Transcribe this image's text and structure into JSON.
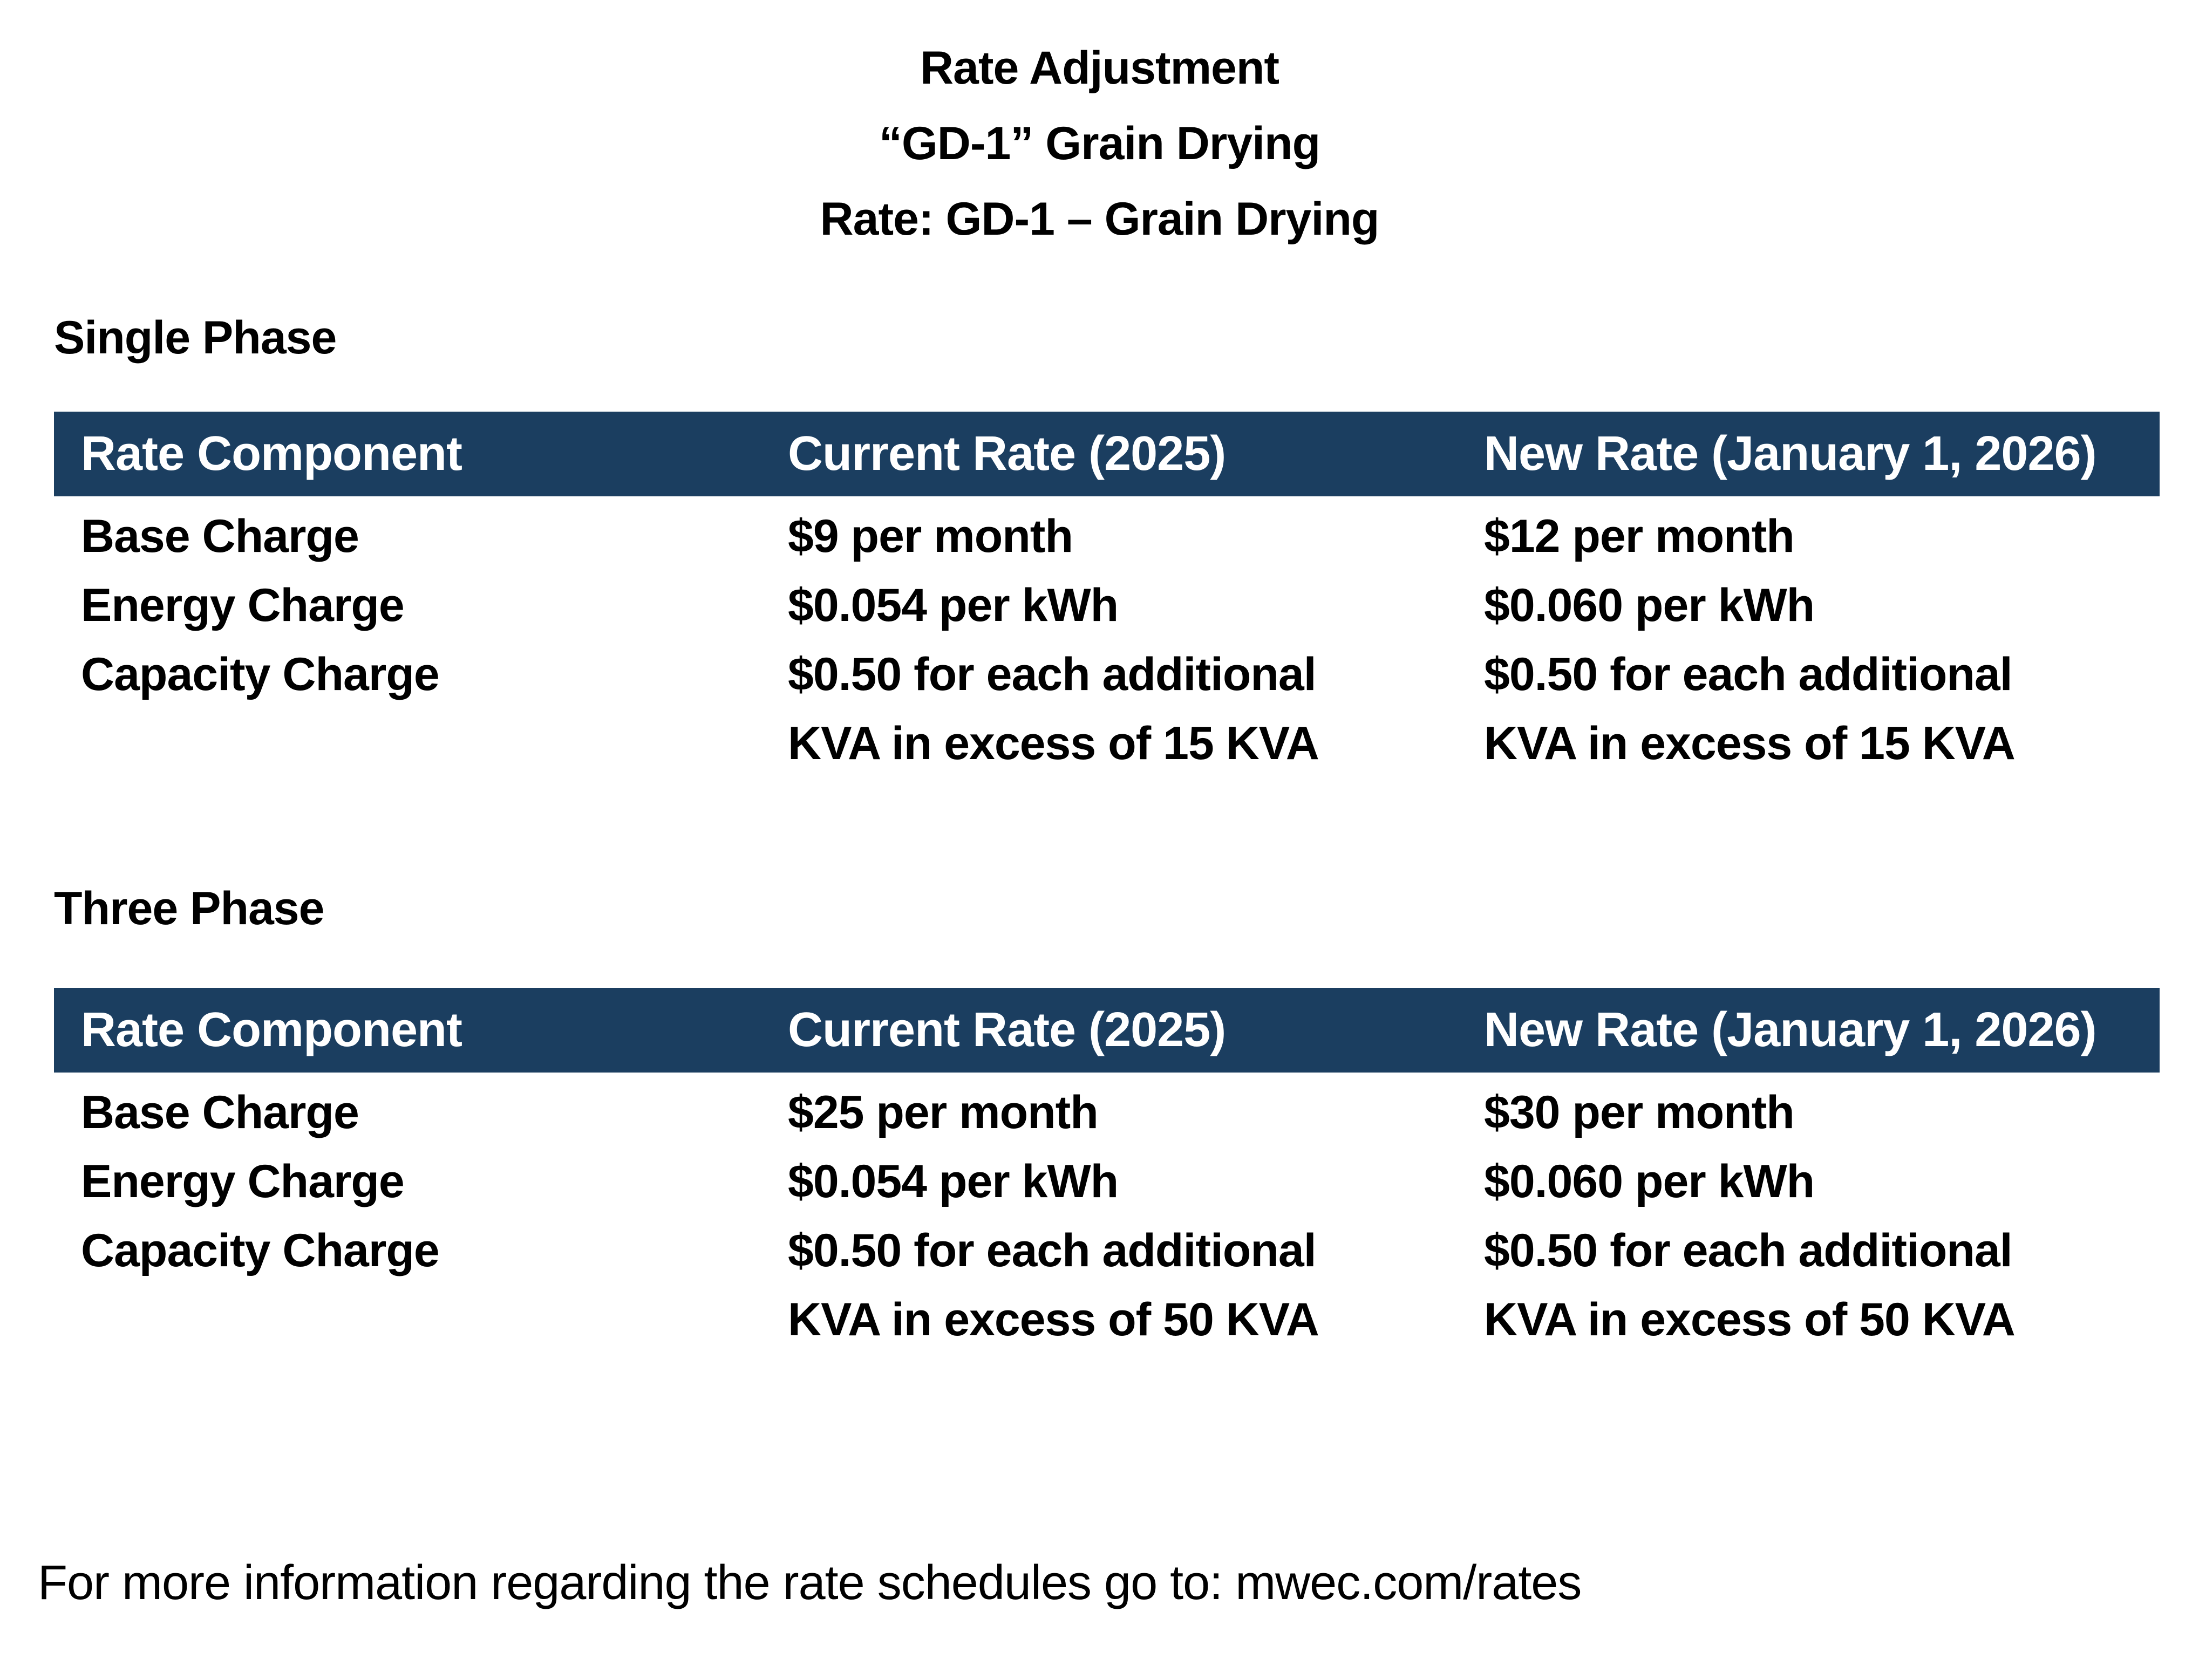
{
  "title": {
    "line1": "Rate Adjustment",
    "line2": "“GD-1” Grain Drying",
    "line3": "Rate: GD-1 – Grain Drying"
  },
  "colors": {
    "table_header_background": "#1B3E60",
    "table_header_text": "#FFFFFF",
    "body_text": "#000000",
    "page_background": "#FFFFFF"
  },
  "sections": [
    {
      "heading": "Single  Phase",
      "table": {
        "columns": [
          "Rate Component",
          "Current Rate (2025)",
          "New Rate (January 1, 2026)"
        ],
        "rows": [
          {
            "component": "Base Charge",
            "current": "$9 per month",
            "new": "$12 per month"
          },
          {
            "component": "Energy Charge",
            "current": "$0.054 per kWh",
            "new": "$0.060 per kWh"
          },
          {
            "component": "Capacity Charge",
            "current": "$0.50 for each additional\nKVA in excess of 15 KVA",
            "new": "$0.50 for each additional\nKVA in excess of 15 KVA"
          }
        ]
      }
    },
    {
      "heading": "Three Phase",
      "table": {
        "columns": [
          "Rate Component",
          "Current Rate (2025)",
          "New Rate (January 1, 2026)"
        ],
        "rows": [
          {
            "component": "Base Charge",
            "current": "$25 per month",
            "new": "$30 per month"
          },
          {
            "component": "Energy Charge",
            "current": "$0.054 per kWh",
            "new": "$0.060 per kWh"
          },
          {
            "component": "Capacity Charge",
            "current": "$0.50 for each additional\nKVA in excess of 50 KVA",
            "new": "$0.50 for each additional\nKVA in excess of 50 KVA"
          }
        ]
      }
    }
  ],
  "footer": {
    "text": "For more information regarding the rate schedules go to: mwec.com/rates"
  }
}
